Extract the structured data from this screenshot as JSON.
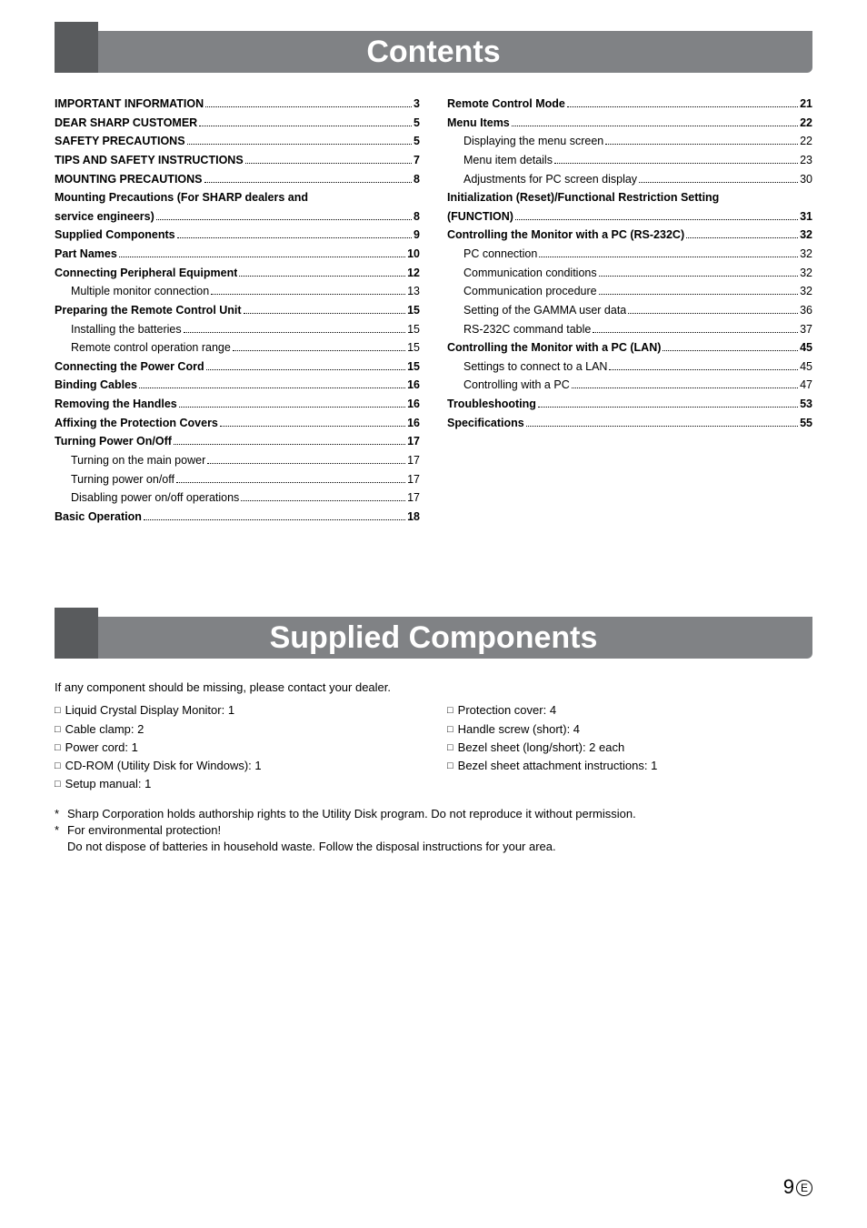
{
  "headings": {
    "contents": "Contents",
    "supplied": "Supplied Components"
  },
  "toc_left": [
    {
      "label": "IMPORTANT INFORMATION",
      "page": "3",
      "bold": true,
      "indent": 0
    },
    {
      "label": "DEAR SHARP CUSTOMER",
      "page": "5",
      "bold": true,
      "indent": 0
    },
    {
      "label": "SAFETY PRECAUTIONS",
      "page": "5",
      "bold": true,
      "indent": 0
    },
    {
      "label": "TIPS AND SAFETY INSTRUCTIONS",
      "page": "7",
      "bold": true,
      "indent": 0
    },
    {
      "label": "MOUNTING PRECAUTIONS",
      "page": "8",
      "bold": true,
      "indent": 0
    },
    {
      "label": "Mounting Precautions (For SHARP dealers and",
      "page": "",
      "bold": true,
      "indent": 0,
      "nopage": true
    },
    {
      "label": "service engineers)",
      "page": "8",
      "bold": true,
      "indent": 0
    },
    {
      "label": "Supplied Components",
      "page": "9",
      "bold": true,
      "indent": 0
    },
    {
      "label": "Part Names",
      "page": "10",
      "bold": true,
      "indent": 0
    },
    {
      "label": "Connecting Peripheral Equipment",
      "page": "12",
      "bold": true,
      "indent": 0
    },
    {
      "label": "Multiple monitor connection",
      "page": "13",
      "bold": false,
      "indent": 1
    },
    {
      "label": "Preparing the Remote Control Unit",
      "page": "15",
      "bold": true,
      "indent": 0
    },
    {
      "label": "Installing the batteries",
      "page": "15",
      "bold": false,
      "indent": 1
    },
    {
      "label": "Remote control operation range",
      "page": "15",
      "bold": false,
      "indent": 1
    },
    {
      "label": "Connecting the Power Cord",
      "page": "15",
      "bold": true,
      "indent": 0
    },
    {
      "label": "Binding Cables",
      "page": "16",
      "bold": true,
      "indent": 0
    },
    {
      "label": "Removing the Handles",
      "page": "16",
      "bold": true,
      "indent": 0
    },
    {
      "label": "Affixing the Protection Covers",
      "page": "16",
      "bold": true,
      "indent": 0
    },
    {
      "label": "Turning Power On/Off",
      "page": "17",
      "bold": true,
      "indent": 0
    },
    {
      "label": "Turning on the main power",
      "page": "17",
      "bold": false,
      "indent": 1
    },
    {
      "label": "Turning power on/off",
      "page": "17",
      "bold": false,
      "indent": 1
    },
    {
      "label": "Disabling power on/off operations",
      "page": "17",
      "bold": false,
      "indent": 1
    },
    {
      "label": "Basic Operation",
      "page": "18",
      "bold": true,
      "indent": 0
    }
  ],
  "toc_right": [
    {
      "label": "Remote Control Mode",
      "page": "21",
      "bold": true,
      "indent": 0
    },
    {
      "label": "Menu Items",
      "page": "22",
      "bold": true,
      "indent": 0
    },
    {
      "label": "Displaying the menu screen",
      "page": "22",
      "bold": false,
      "indent": 1
    },
    {
      "label": "Menu item details",
      "page": "23",
      "bold": false,
      "indent": 1
    },
    {
      "label": "Adjustments for PC screen display",
      "page": "30",
      "bold": false,
      "indent": 1
    },
    {
      "label": "Initialization (Reset)/Functional Restriction Setting",
      "page": "",
      "bold": true,
      "indent": 0,
      "nopage": true
    },
    {
      "label": "(FUNCTION)",
      "page": "31",
      "bold": true,
      "indent": 0
    },
    {
      "label": "Controlling the Monitor with a PC (RS-232C)",
      "page": "32",
      "bold": true,
      "indent": 0
    },
    {
      "label": "PC connection",
      "page": "32",
      "bold": false,
      "indent": 1
    },
    {
      "label": "Communication conditions",
      "page": "32",
      "bold": false,
      "indent": 1
    },
    {
      "label": "Communication procedure",
      "page": "32",
      "bold": false,
      "indent": 1
    },
    {
      "label": "Setting of the GAMMA user data",
      "page": "36",
      "bold": false,
      "indent": 1
    },
    {
      "label": "RS-232C command table",
      "page": "37",
      "bold": false,
      "indent": 1
    },
    {
      "label": "Controlling the Monitor with a PC (LAN)",
      "page": "45",
      "bold": true,
      "indent": 0
    },
    {
      "label": "Settings to connect to a LAN",
      "page": "45",
      "bold": false,
      "indent": 1
    },
    {
      "label": "Controlling with a PC",
      "page": "47",
      "bold": false,
      "indent": 1
    },
    {
      "label": "Troubleshooting",
      "page": "53",
      "bold": true,
      "indent": 0
    },
    {
      "label": "Specifications",
      "page": "55",
      "bold": true,
      "indent": 0
    }
  ],
  "supplied": {
    "intro": "If any component should be missing, please contact your dealer.",
    "left_items": [
      "Liquid Crystal Display Monitor: 1",
      "Cable clamp: 2",
      "Power cord: 1",
      "CD-ROM (Utility Disk for Windows): 1",
      "Setup manual: 1"
    ],
    "right_items": [
      "Protection cover: 4",
      "Handle screw (short): 4",
      "Bezel sheet (long/short): 2 each",
      "Bezel sheet attachment instructions: 1"
    ],
    "footnotes": [
      "Sharp Corporation holds authorship rights to the Utility Disk program. Do not reproduce it without permission.",
      "For environmental protection!\nDo not dispose of batteries in household waste. Follow the disposal instructions for your area."
    ]
  },
  "page_number": "9",
  "page_letter": "E"
}
